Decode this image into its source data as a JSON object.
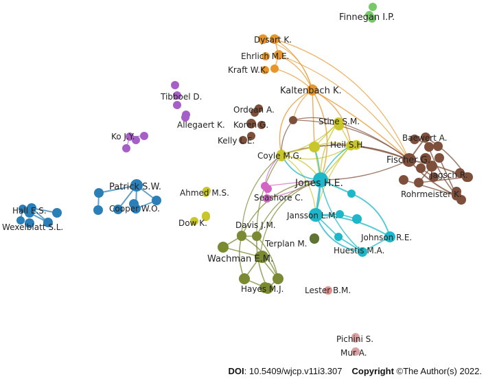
{
  "graph": {
    "clusters": {
      "orange": "#e8952a",
      "purple": "#a65fc7",
      "brown": "#7e4f3a",
      "olive": "#7a8a33",
      "olive_dark": "#5f7332",
      "yellow": "#c9c62c",
      "cyan": "#1cb8c9",
      "blue": "#2a7fb8",
      "pink": "#d563c6",
      "salmon": "#e58d8a",
      "green": "#78c86a",
      "rose": "#d8a0a0"
    },
    "nodes": [
      {
        "id": "finnegan",
        "label": "Finnegan I.P.",
        "cluster": "green"
      },
      {
        "id": "dysart",
        "label": "Dysart K.",
        "cluster": "orange"
      },
      {
        "id": "ehrlich",
        "label": "Ehrlich M.E.",
        "cluster": "orange"
      },
      {
        "id": "kraft",
        "label": "Kraft W.K.",
        "cluster": "orange"
      },
      {
        "id": "kaltenbach",
        "label": "Kaltenbach K.",
        "cluster": "orange"
      },
      {
        "id": "tibboel",
        "label": "Tibboel D.",
        "cluster": "purple"
      },
      {
        "id": "allegaert",
        "label": "Allegaert K.",
        "cluster": "purple"
      },
      {
        "id": "ko",
        "label": "Ko J.Y.",
        "cluster": "purple"
      },
      {
        "id": "ordean",
        "label": "Ordean A.",
        "cluster": "brown"
      },
      {
        "id": "koren",
        "label": "Koren G.",
        "cluster": "brown"
      },
      {
        "id": "kelly",
        "label": "Kelly L.E.",
        "cluster": "brown"
      },
      {
        "id": "stine",
        "label": "Stine S.M.",
        "cluster": "yellow"
      },
      {
        "id": "heil",
        "label": "Heil S.H.",
        "cluster": "yellow"
      },
      {
        "id": "coyle",
        "label": "Coyle M.G.",
        "cluster": "yellow"
      },
      {
        "id": "baewert",
        "label": "Baewert A.",
        "cluster": "brown"
      },
      {
        "id": "fischer",
        "label": "Fischer G.",
        "cluster": "brown"
      },
      {
        "id": "jagsch",
        "label": "Jagsch R.",
        "cluster": "brown"
      },
      {
        "id": "rohrmeister",
        "label": "Rohrmeister K.",
        "cluster": "brown"
      },
      {
        "id": "patrick",
        "label": "Patrick S.W.",
        "cluster": "blue"
      },
      {
        "id": "cooper",
        "label": "Cooper W.O.",
        "cluster": "blue"
      },
      {
        "id": "hall",
        "label": "Hall E.S.",
        "cluster": "blue"
      },
      {
        "id": "wexelblatt",
        "label": "Wexelblatt S.L.",
        "cluster": "blue"
      },
      {
        "id": "jones",
        "label": "Jones H.E.",
        "cluster": "cyan"
      },
      {
        "id": "ahmed",
        "label": "Ahmed M.S.",
        "cluster": "yellow"
      },
      {
        "id": "seashore",
        "label": "Seashore C.",
        "cluster": "pink"
      },
      {
        "id": "jansson",
        "label": "Jansson L.M.",
        "cluster": "cyan"
      },
      {
        "id": "johnson",
        "label": "Johnson R.E.",
        "cluster": "cyan"
      },
      {
        "id": "huestis",
        "label": "Huestis M.A.",
        "cluster": "cyan"
      },
      {
        "id": "dow",
        "label": "Dow K.",
        "cluster": "yellow"
      },
      {
        "id": "davis",
        "label": "Davis J.M.",
        "cluster": "olive"
      },
      {
        "id": "terplan",
        "label": "Terplan M.",
        "cluster": "olive_dark"
      },
      {
        "id": "wachman",
        "label": "Wachman E.M.",
        "cluster": "olive"
      },
      {
        "id": "hayes",
        "label": "Hayes M.J.",
        "cluster": "olive"
      },
      {
        "id": "lester",
        "label": "Lester B.M.",
        "cluster": "salmon"
      },
      {
        "id": "pichini",
        "label": "Pichini S.",
        "cluster": "rose"
      },
      {
        "id": "mur",
        "label": "Mur A.",
        "cluster": "rose"
      }
    ]
  },
  "footer": {
    "doi_label": "DOI",
    "doi_value": ": 10.5409/wjcp.v11i3.307",
    "copyright_label": "Copyright",
    "copyright_value": " ©The Author(s) 2022."
  }
}
